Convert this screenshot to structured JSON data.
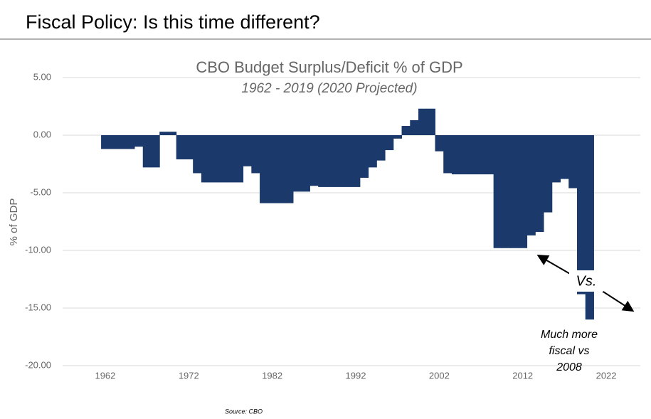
{
  "header": {
    "title": "Fiscal Policy: Is this time different?"
  },
  "source": "Source: CBO",
  "chart_data": {
    "type": "bar",
    "title": "CBO Budget Surplus/Deficit % of GDP",
    "subtitle": "1962 - 2019 (2020 Projected)",
    "y_label": "% of GDP",
    "x": [
      1962,
      1963,
      1964,
      1965,
      1966,
      1967,
      1968,
      1969,
      1970,
      1971,
      1972,
      1973,
      1974,
      1975,
      1976,
      1977,
      1978,
      1979,
      1980,
      1981,
      1982,
      1983,
      1984,
      1985,
      1986,
      1987,
      1988,
      1989,
      1990,
      1991,
      1992,
      1993,
      1994,
      1995,
      1996,
      1997,
      1998,
      1999,
      2000,
      2001,
      2002,
      2003,
      2004,
      2005,
      2006,
      2007,
      2008,
      2009,
      2010,
      2011,
      2012,
      2013,
      2014,
      2015,
      2016,
      2017,
      2018,
      2019,
      2020
    ],
    "values": [
      -1.2,
      -1.2,
      -1.2,
      -1.2,
      -1.0,
      -2.8,
      -2.8,
      0.3,
      0.3,
      -2.1,
      -2.1,
      -3.3,
      -4.1,
      -4.1,
      -4.1,
      -4.1,
      -4.1,
      -2.7,
      -3.3,
      -5.9,
      -5.9,
      -5.9,
      -5.9,
      -4.9,
      -4.9,
      -4.4,
      -4.5,
      -4.5,
      -4.5,
      -4.5,
      -4.5,
      -3.7,
      -2.8,
      -2.2,
      -1.3,
      -0.3,
      0.8,
      1.3,
      2.3,
      2.3,
      -1.4,
      -3.3,
      -3.4,
      -3.4,
      -3.4,
      -3.4,
      -3.4,
      -9.8,
      -9.8,
      -9.8,
      -9.8,
      -8.7,
      -8.4,
      -6.7,
      -4.1,
      -3.8,
      -4.6,
      -13.8,
      -16.0
    ],
    "color": "#1b3a6b",
    "xlim": [
      1958,
      2026
    ],
    "xticks": [
      1962,
      1972,
      1982,
      1992,
      2002,
      2012,
      2022
    ],
    "ylim": [
      -20,
      5
    ],
    "yticks": [
      {
        "value": 5,
        "label": "5.00"
      },
      {
        "value": 0,
        "label": "0.00"
      },
      {
        "value": -5,
        "label": "-5.00"
      },
      {
        "value": -10,
        "label": "-10.00"
      },
      {
        "value": -15,
        "label": "-15.00"
      },
      {
        "value": -20,
        "label": "-20.00"
      }
    ],
    "grid": true,
    "annotations": [
      "Vs.",
      "Much more",
      "fiscal vs",
      "2008"
    ]
  }
}
